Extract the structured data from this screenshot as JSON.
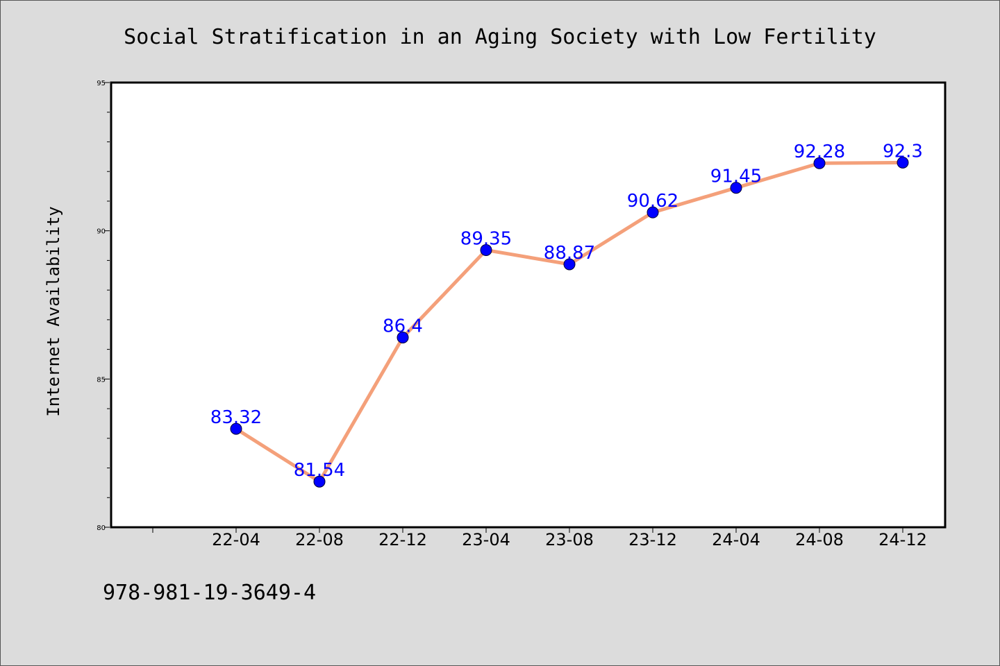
{
  "chart_data": {
    "type": "line",
    "title": "Social Stratification in an Aging Society with Low Fertility",
    "xlabel": "",
    "ylabel": "Internet Availability",
    "categories": [
      "22-04",
      "22-08",
      "22-12",
      "23-04",
      "23-08",
      "23-12",
      "24-04",
      "24-08",
      "24-12"
    ],
    "values": [
      83.32,
      81.54,
      86.4,
      89.35,
      88.87,
      90.62,
      91.45,
      92.28,
      92.3
    ],
    "data_labels": [
      "83.32",
      "81.54",
      "86.4",
      "89.35",
      "88.87",
      "90.62",
      "91.45",
      "92.28",
      "92.3"
    ],
    "ylim": [
      80,
      95
    ],
    "yticks": [
      "80",
      "85",
      "90",
      "95"
    ],
    "grid": false,
    "line_color": "#f4a07a",
    "marker_color": "#0000ff",
    "label_color": "#0000ff"
  },
  "footer": {
    "isbn": "978-981-19-3649-4"
  }
}
